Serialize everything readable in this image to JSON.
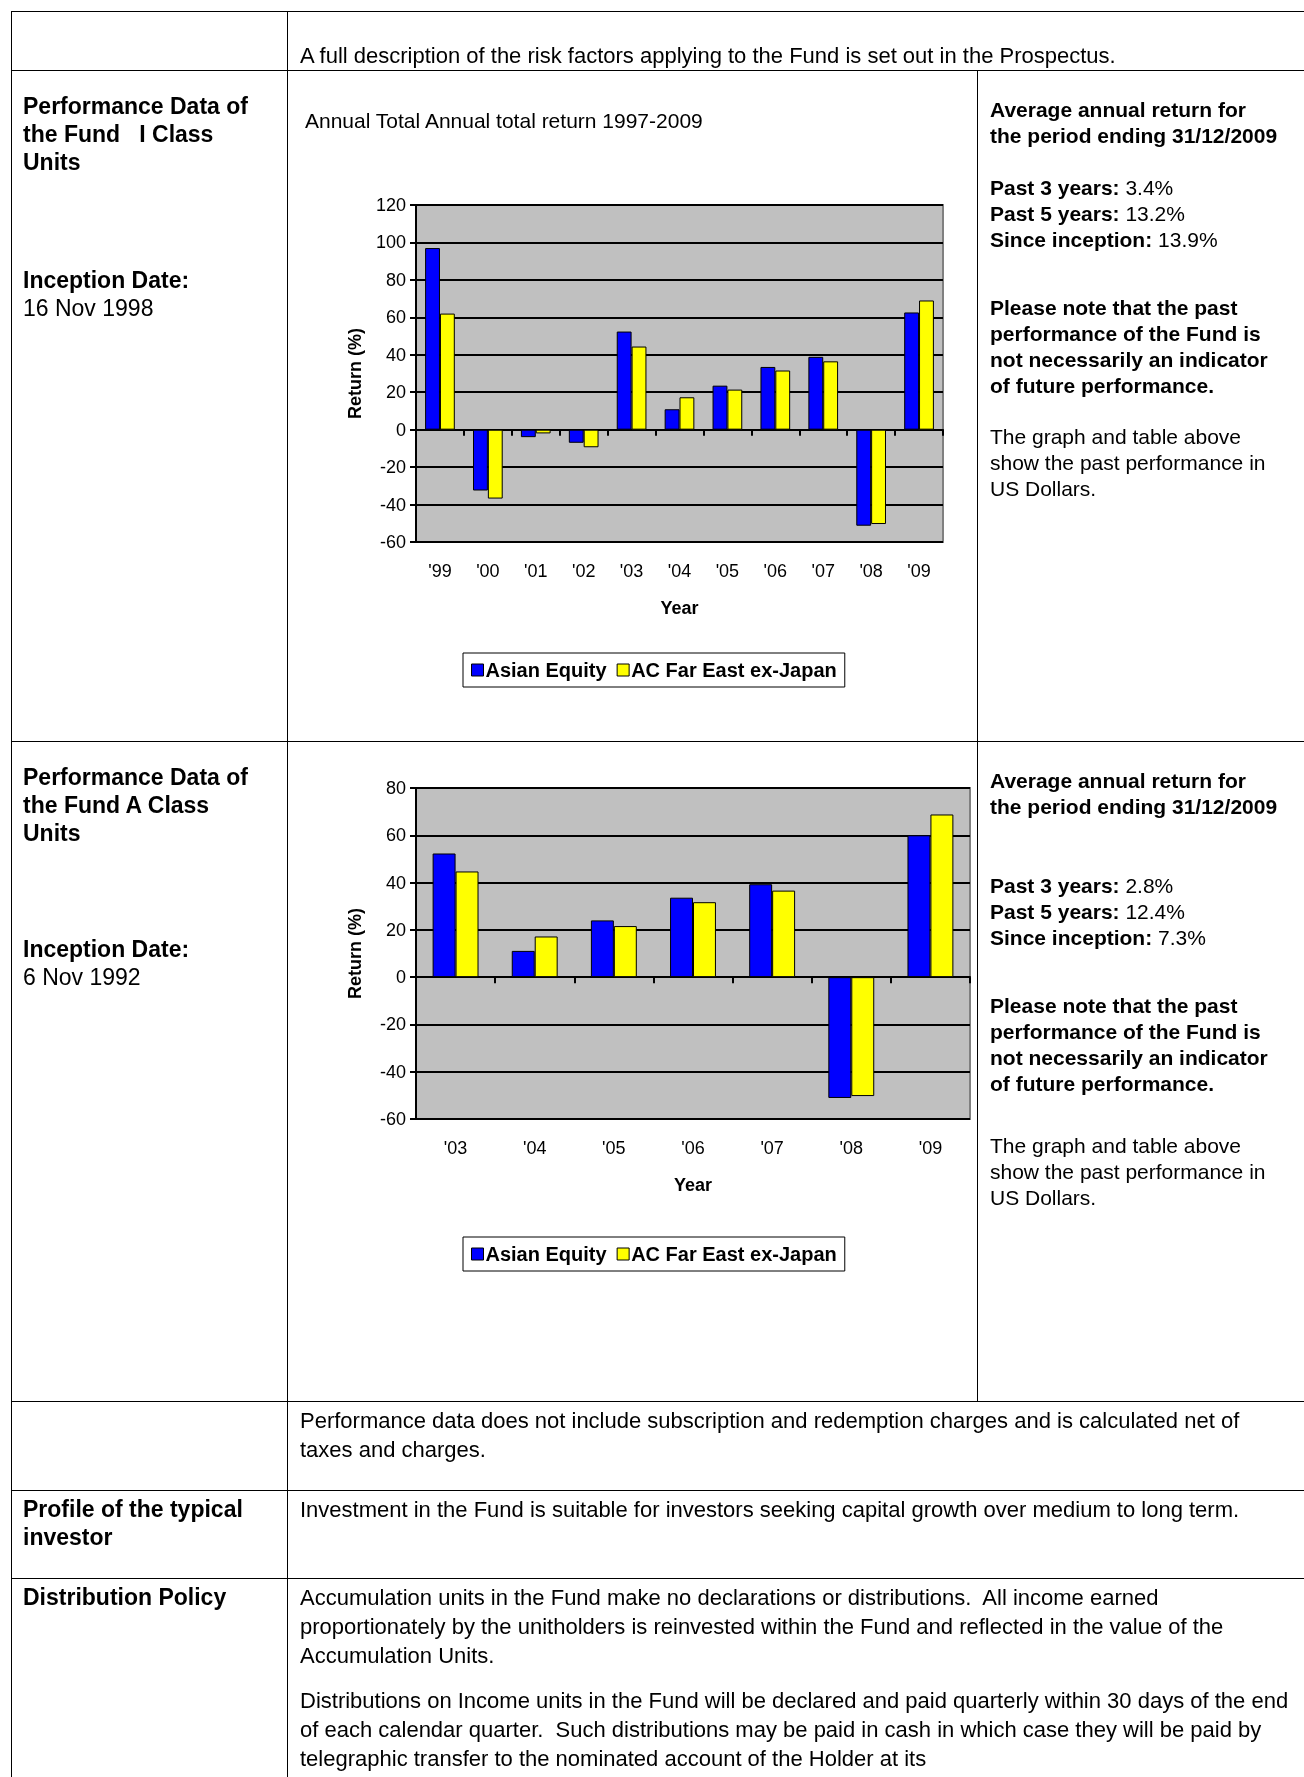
{
  "chart_data": [
    {
      "type": "other",
      "annotations": [
        "A full description of the risk factors applying to the Fund is set out in the Prospectus."
      ]
    },
    {
      "type": "bar",
      "title": "Annual Total Annual total return 1997-2009",
      "xlabel": "Year",
      "ylabel": "Return (%)",
      "categories": [
        "'99",
        "'00",
        "'01",
        "'02",
        "'03",
        "'04",
        "'05",
        "'06",
        "'07",
        "'08",
        "'09"
      ],
      "series": [
        {
          "name": "Asian Equity",
          "color": "#0000ff",
          "values": [
            97,
            -32.5,
            -4,
            -7,
            52.4,
            10.9,
            23.5,
            33.5,
            38.9,
            -51.3,
            62.6
          ]
        },
        {
          "name": "AC Far East ex-Japan",
          "color": "#ffff00",
          "values": [
            62,
            -36.8,
            -2,
            -9.4,
            44.4,
            17.3,
            21.4,
            31.6,
            36.5,
            -50.4,
            69
          ]
        }
      ],
      "ylim": [
        -60,
        120
      ],
      "yticks": [
        -60,
        -40,
        -20,
        0,
        20,
        40,
        60,
        80,
        100,
        120
      ],
      "grid": "y",
      "legend": "bottom",
      "annotations": [
        "Performance Data of the Fund   I Class Units",
        "Inception Date:",
        "16 Nov 1998",
        "Average annual return for the period ending 31/12/2009",
        "Past 3 years:",
        "3.4%",
        "Past 5 years:",
        "13.2%",
        "Since inception:",
        "13.9%",
        "Please note that the past performance of the Fund is not necessarily an indicator of future performance.",
        "The graph and table above show the past performance in US Dollars."
      ]
    },
    {
      "type": "bar",
      "xlabel": "Year",
      "ylabel": "Return (%)",
      "categories": [
        "'03",
        "'04",
        "'05",
        "'06",
        "'07",
        "'08",
        "'09"
      ],
      "series": [
        {
          "name": "Asian Equity",
          "color": "#0000ff",
          "values": [
            52.3,
            11.1,
            24,
            33.6,
            39.3,
            -51.1,
            60
          ]
        },
        {
          "name": "AC Far East ex-Japan",
          "color": "#ffff00",
          "values": [
            44.7,
            17.2,
            21.6,
            31.7,
            36.6,
            -50.3,
            68.8
          ]
        }
      ],
      "ylim": [
        -60,
        80
      ],
      "yticks": [
        -60,
        -40,
        -20,
        0,
        20,
        40,
        60,
        80
      ],
      "grid": "y",
      "legend": "bottom",
      "annotations": [
        "Performance Data of the Fund A Class Units",
        "Inception Date:",
        "6 Nov 1992",
        "Average annual return for the period ending 31/12/2009",
        "Past 3 years:",
        "2.8%",
        "Past 5 years:",
        "12.4%",
        "Since inception:",
        "7.3%",
        "Please note that the past performance of the Fund is not necessarily an indicator of future performance.",
        "The graph and table above show the past performance in US Dollars."
      ]
    },
    {
      "type": "other",
      "annotations": [
        "Performance data does not include subscription and redemption charges and is calculated net of taxes and charges.",
        "Profile of the typical investor",
        "Investment in the Fund is suitable for investors seeking capital growth over medium to long term.",
        "Distribution Policy",
        "Accumulation units in the Fund make no declarations or distributions.  All income earned proportionately by the unitholders is reinvested within the Fund and reflected in the value of the Accumulation Units.",
        "Distributions on Income units in the Fund will be declared and paid quarterly within 30 days of the end of each calendar quarter.  Such distributions may be paid in cash in which case they will be paid by telegraphic transfer to the nominated account of the Holder at its"
      ]
    }
  ]
}
